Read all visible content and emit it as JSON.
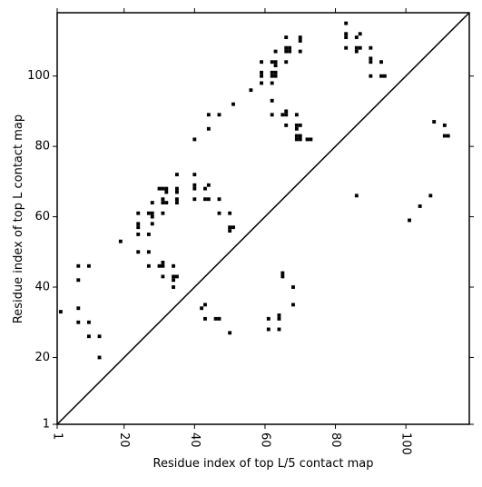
{
  "chart_data": {
    "type": "scatter",
    "title": "",
    "xlabel": "Residue index of top L/5 contact map",
    "ylabel": "Residue index of top L contact map",
    "xlim": [
      1,
      118
    ],
    "ylim": [
      1,
      118
    ],
    "xticks": [
      1,
      20,
      40,
      60,
      80,
      100
    ],
    "yticks": [
      1,
      20,
      40,
      60,
      80,
      100
    ],
    "xtick_rotation": "vertical",
    "grid": false,
    "legend": "none",
    "marker": "square",
    "marker_color": "#000000",
    "diagonal_line": {
      "from": [
        1,
        1
      ],
      "to": [
        118,
        118
      ],
      "color": "#000000"
    },
    "points": [
      [
        2,
        33
      ],
      [
        7,
        46
      ],
      [
        7,
        42
      ],
      [
        7,
        34
      ],
      [
        7,
        30
      ],
      [
        10,
        46
      ],
      [
        10,
        30
      ],
      [
        10,
        26
      ],
      [
        13,
        26
      ],
      [
        13,
        20
      ],
      [
        19,
        53
      ],
      [
        24,
        61
      ],
      [
        24,
        58
      ],
      [
        24,
        57
      ],
      [
        24,
        55
      ],
      [
        24,
        50
      ],
      [
        27,
        61
      ],
      [
        27,
        55
      ],
      [
        27,
        50
      ],
      [
        27,
        46
      ],
      [
        28,
        64
      ],
      [
        28,
        61
      ],
      [
        28,
        60
      ],
      [
        28,
        58
      ],
      [
        30,
        68
      ],
      [
        30,
        46
      ],
      [
        31,
        68
      ],
      [
        31,
        65
      ],
      [
        31,
        64
      ],
      [
        31,
        61
      ],
      [
        31,
        47
      ],
      [
        31,
        46
      ],
      [
        31,
        43
      ],
      [
        32,
        68
      ],
      [
        32,
        67
      ],
      [
        32,
        64
      ],
      [
        34,
        46
      ],
      [
        34,
        43
      ],
      [
        34,
        42
      ],
      [
        34,
        40
      ],
      [
        35,
        72
      ],
      [
        35,
        68
      ],
      [
        35,
        67
      ],
      [
        35,
        65
      ],
      [
        35,
        64
      ],
      [
        35,
        43
      ],
      [
        40,
        82
      ],
      [
        40,
        72
      ],
      [
        40,
        69
      ],
      [
        40,
        68
      ],
      [
        40,
        65
      ],
      [
        42,
        34
      ],
      [
        43,
        68
      ],
      [
        43,
        65
      ],
      [
        43,
        35
      ],
      [
        43,
        31
      ],
      [
        44,
        89
      ],
      [
        44,
        85
      ],
      [
        44,
        69
      ],
      [
        44,
        65
      ],
      [
        46,
        31
      ],
      [
        47,
        89
      ],
      [
        47,
        65
      ],
      [
        47,
        61
      ],
      [
        47,
        31
      ],
      [
        50,
        61
      ],
      [
        50,
        57
      ],
      [
        50,
        56
      ],
      [
        50,
        27
      ],
      [
        51,
        92
      ],
      [
        51,
        57
      ],
      [
        56,
        96
      ],
      [
        59,
        104
      ],
      [
        59,
        101
      ],
      [
        59,
        100
      ],
      [
        59,
        98
      ],
      [
        61,
        31
      ],
      [
        61,
        28
      ],
      [
        62,
        104
      ],
      [
        62,
        101
      ],
      [
        62,
        100
      ],
      [
        62,
        98
      ],
      [
        62,
        93
      ],
      [
        62,
        89
      ],
      [
        63,
        107
      ],
      [
        63,
        104
      ],
      [
        63,
        103
      ],
      [
        63,
        101
      ],
      [
        63,
        100
      ],
      [
        64,
        32
      ],
      [
        64,
        31
      ],
      [
        64,
        28
      ],
      [
        65,
        89
      ],
      [
        65,
        44
      ],
      [
        65,
        43
      ],
      [
        66,
        111
      ],
      [
        66,
        108
      ],
      [
        66,
        107
      ],
      [
        66,
        104
      ],
      [
        66,
        90
      ],
      [
        66,
        89
      ],
      [
        66,
        86
      ],
      [
        67,
        108
      ],
      [
        67,
        107
      ],
      [
        68,
        40
      ],
      [
        68,
        35
      ],
      [
        69,
        89
      ],
      [
        69,
        86
      ],
      [
        69,
        85
      ],
      [
        69,
        83
      ],
      [
        69,
        82
      ],
      [
        70,
        111
      ],
      [
        70,
        110
      ],
      [
        70,
        107
      ],
      [
        70,
        86
      ],
      [
        70,
        83
      ],
      [
        70,
        82
      ],
      [
        72,
        82
      ],
      [
        73,
        82
      ],
      [
        83,
        115
      ],
      [
        83,
        112
      ],
      [
        83,
        111
      ],
      [
        83,
        108
      ],
      [
        86,
        111
      ],
      [
        86,
        108
      ],
      [
        86,
        107
      ],
      [
        86,
        66
      ],
      [
        87,
        112
      ],
      [
        87,
        108
      ],
      [
        90,
        108
      ],
      [
        90,
        105
      ],
      [
        90,
        104
      ],
      [
        90,
        100
      ],
      [
        93,
        104
      ],
      [
        93,
        100
      ],
      [
        94,
        100
      ],
      [
        101,
        59
      ],
      [
        104,
        63
      ],
      [
        107,
        66
      ],
      [
        108,
        87
      ],
      [
        111,
        86
      ],
      [
        111,
        83
      ],
      [
        112,
        83
      ]
    ]
  }
}
